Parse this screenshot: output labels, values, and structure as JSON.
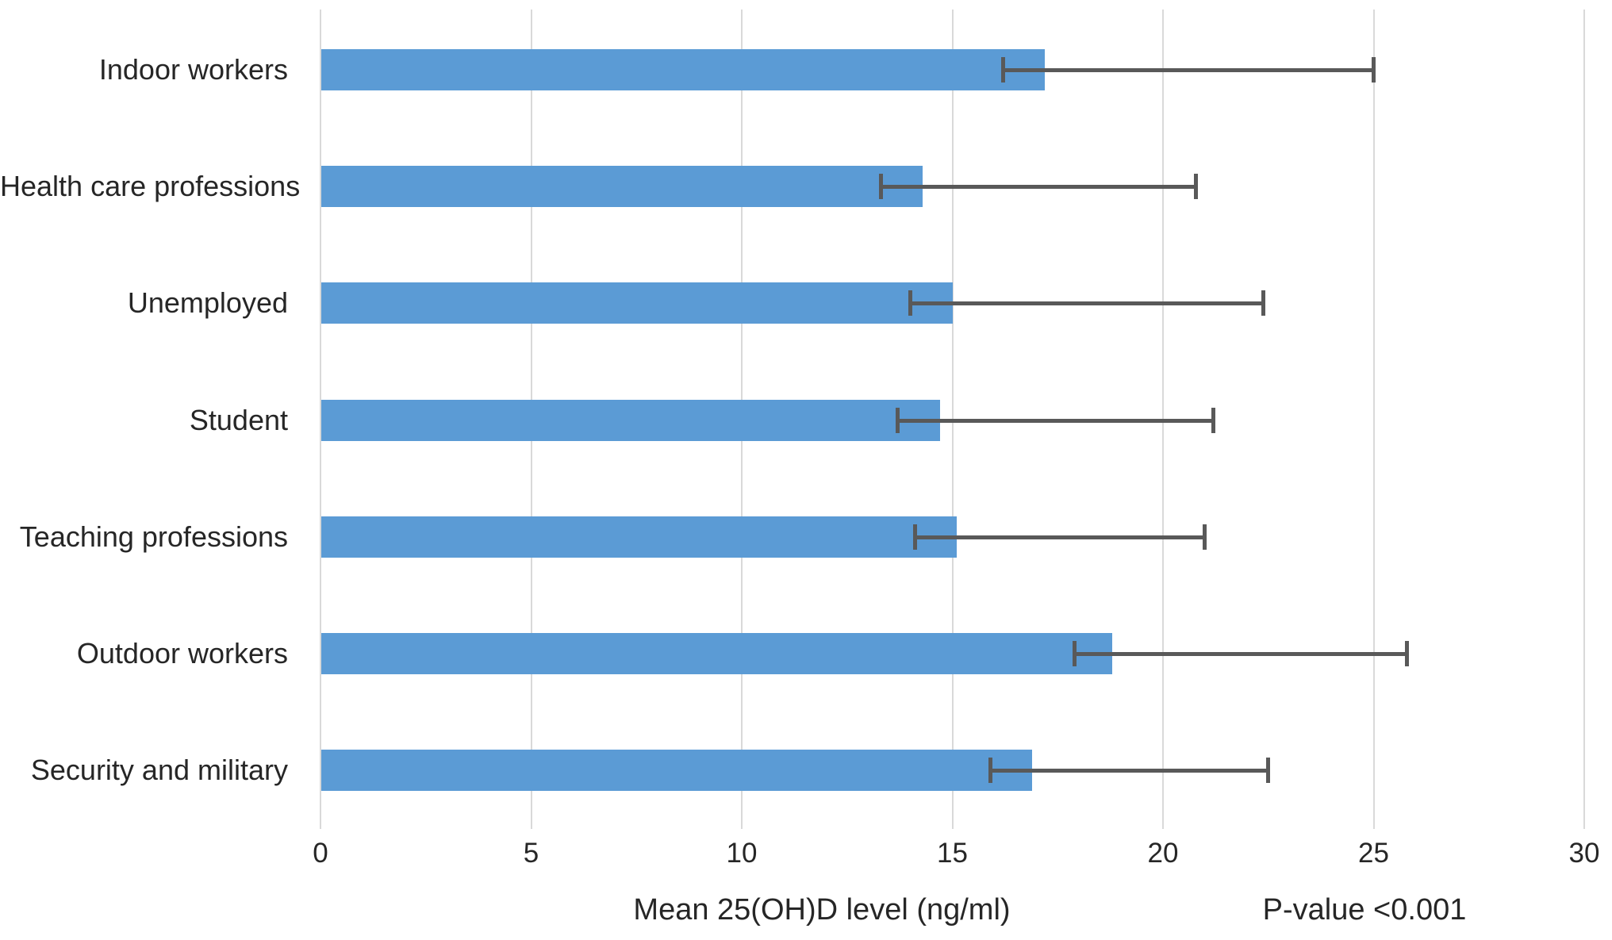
{
  "chart_data": {
    "type": "bar",
    "orientation": "horizontal",
    "title": "",
    "xlabel": "Mean 25(OH)D level (ng/ml)",
    "annotation": "P-value <0.001",
    "xlim": [
      0,
      30
    ],
    "xticks": [
      "0",
      "5",
      "10",
      "15",
      "20",
      "25",
      "30"
    ],
    "grid": true,
    "legend": "none",
    "categories": [
      "Indoor workers",
      "Health care professions",
      "Unemployed",
      "Student",
      "Teaching professions",
      "Outdoor workers",
      "Security and military"
    ],
    "series": [
      {
        "name": "Mean 25(OH)D level (ng/ml)",
        "values": [
          17.2,
          14.3,
          15.0,
          14.7,
          15.1,
          18.8,
          16.9
        ]
      }
    ],
    "error_bars": [
      {
        "low": 16.2,
        "high": 25.0
      },
      {
        "low": 13.3,
        "high": 20.8
      },
      {
        "low": 14.0,
        "high": 22.4
      },
      {
        "low": 13.7,
        "high": 21.2
      },
      {
        "low": 14.1,
        "high": 21.0
      },
      {
        "low": 17.9,
        "high": 25.8
      },
      {
        "low": 15.9,
        "high": 22.5
      }
    ],
    "colors": {
      "bar": "#5b9bd5",
      "error_bar": "#595959",
      "gridline": "#d9d9d9",
      "text": "#262626",
      "background": "#ffffff"
    }
  }
}
